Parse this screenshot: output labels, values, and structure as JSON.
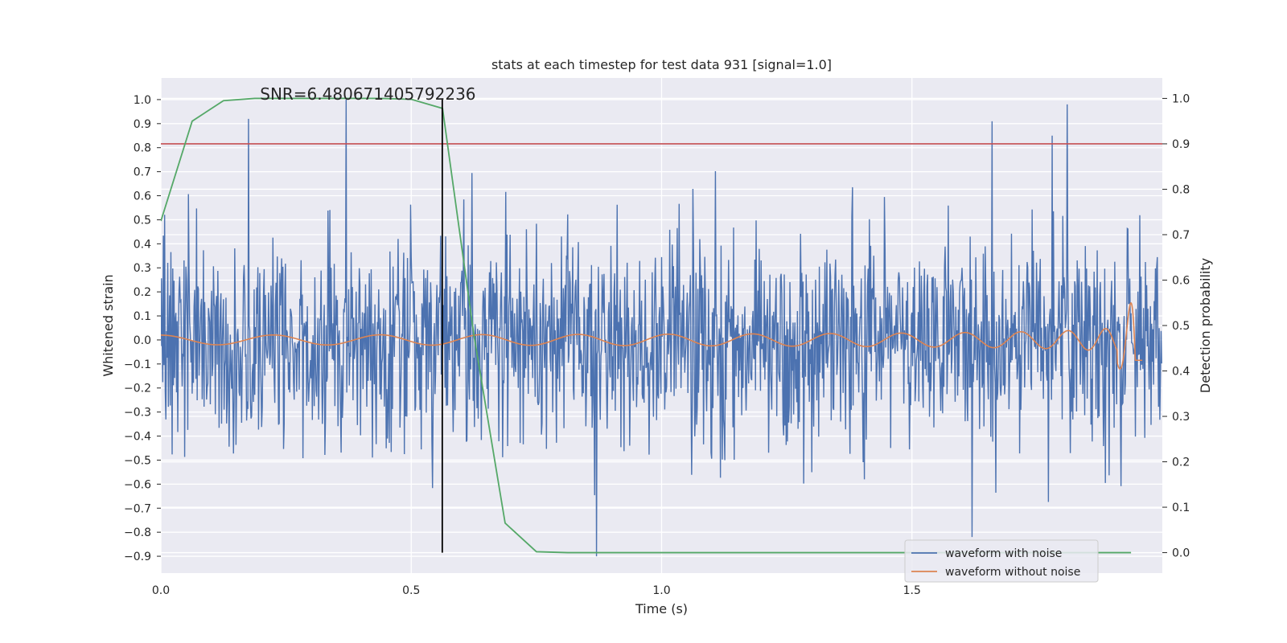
{
  "chart_data": {
    "type": "line",
    "title": "stats at each timestep for test data 931 [signal=1.0]",
    "annotation": "SNR=6.480671405792236",
    "xlabel": "Time (s)",
    "ylabel": "Whitened strain",
    "ylabel_right": "Detection probability",
    "xlim": [
      0.0,
      2.0
    ],
    "ylim": [
      -0.97,
      1.09
    ],
    "ylim_right": [
      -0.045,
      1.045
    ],
    "x_ticks": [
      "0.0",
      "0.5",
      "1.0",
      "1.5"
    ],
    "y_ticks": [
      "1.0",
      "0.9",
      "0.8",
      "0.7",
      "0.6",
      "0.5",
      "0.4",
      "0.3",
      "0.2",
      "0.1",
      "0.0",
      "−0.1",
      "−0.2",
      "−0.3",
      "−0.4",
      "−0.5",
      "−0.6",
      "−0.7",
      "−0.8",
      "−0.9"
    ],
    "y_ticks_right": [
      "1.0",
      "0.9",
      "0.8",
      "0.7",
      "0.6",
      "0.5",
      "0.4",
      "0.3",
      "0.2",
      "0.1",
      "0.0"
    ],
    "grid": true,
    "legend_position": "lower-right",
    "threshold_line": {
      "axis": "right",
      "value": 0.9,
      "color": "#c44e52"
    },
    "marker_line": {
      "x": 0.562,
      "color": "#000000"
    },
    "series": [
      {
        "name": "waveform with noise",
        "axis": "left",
        "color": "#4c72b0",
        "description_points": "noise-like strain, roughly in -0.75..1.0",
        "x_range": [
          0.0,
          2.0
        ],
        "samples": 1600,
        "amplitude_typical": 0.3,
        "notable_peaks": [
          {
            "x": 0.175,
            "y": 0.92
          },
          {
            "x": 0.37,
            "y": 1.0
          },
          {
            "x": 0.87,
            "y": -0.9
          },
          {
            "x": 1.62,
            "y": -0.82
          },
          {
            "x": 1.81,
            "y": 0.98
          },
          {
            "x": 1.66,
            "y": 0.91
          },
          {
            "x": 1.78,
            "y": 0.85
          }
        ]
      },
      {
        "name": "waveform without noise",
        "axis": "left",
        "color": "#dd8452",
        "description_points": "chirp signal, amplitude growing from ~0.02 to ~0.33 near merger at ~1.95 s",
        "x_range": [
          0.0,
          1.96
        ],
        "start_amplitude": 0.02,
        "peak_amplitude": 0.33,
        "merger_time": 1.95
      },
      {
        "name": "detection probability",
        "axis": "right",
        "color": "#55a868",
        "x": [
          0.0,
          0.0625,
          0.125,
          0.1875,
          0.25,
          0.3125,
          0.375,
          0.4375,
          0.5,
          0.5625,
          0.625,
          0.6875,
          0.75,
          0.8125,
          0.875,
          0.9375,
          1.0,
          1.0625,
          1.125,
          1.1875,
          1.25,
          1.3125,
          1.375,
          1.4375,
          1.5,
          1.5625,
          1.625,
          1.6875,
          1.75,
          1.8125,
          1.875,
          1.9375
        ],
        "y": [
          0.73,
          0.95,
          0.995,
          1.0,
          1.0,
          1.0,
          1.0,
          1.0,
          0.998,
          0.978,
          0.48,
          0.065,
          0.002,
          0.0,
          0.0,
          0.0,
          0.0,
          0.0,
          0.0,
          0.0,
          0.0,
          0.0,
          0.0,
          0.0,
          0.0,
          0.0,
          0.0,
          0.0,
          0.0,
          0.0,
          0.0,
          0.0
        ]
      }
    ]
  }
}
